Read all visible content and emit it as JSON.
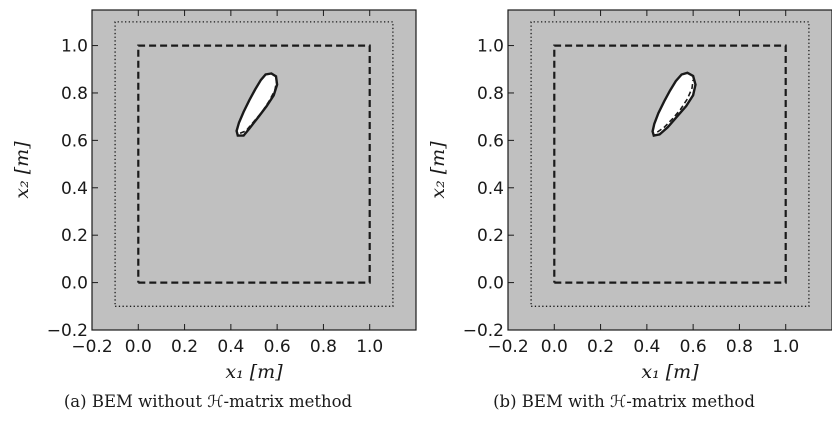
{
  "captions": {
    "a": "(a)  BEM without ℋ-matrix method",
    "b": "(b)  BEM with ℋ-matrix method"
  },
  "colors": {
    "background_fill": "#c0c0c0",
    "ink": "#1a1a1a",
    "inclusion_fill": "#ffffff"
  },
  "chart_data": [
    {
      "type": "line",
      "panel": "a",
      "title": "",
      "xlabel": "x₁  [m]",
      "ylabel": "x₂  [m]",
      "xlim": [
        -0.2,
        1.2
      ],
      "ylim": [
        -0.2,
        1.15
      ],
      "xticks": [
        -0.2,
        0.0,
        0.2,
        0.4,
        0.6,
        0.8,
        1.0
      ],
      "xtick_labels": [
        "−0.2",
        "0.0",
        "0.2",
        "0.4",
        "0.6",
        "0.8",
        "1.0"
      ],
      "yticks": [
        -0.2,
        0.0,
        0.2,
        0.4,
        0.6,
        0.8,
        1.0
      ],
      "ytick_labels": [
        "−0.2",
        "0.0",
        "0.2",
        "0.4",
        "0.6",
        "0.8",
        "1.0"
      ],
      "grid": false,
      "series": [
        {
          "style": "dotted",
          "points": [
            [
              -0.1,
              -0.1
            ],
            [
              1.1,
              -0.1
            ],
            [
              1.1,
              1.1
            ],
            [
              -0.1,
              1.1
            ],
            [
              -0.1,
              -0.1
            ]
          ]
        },
        {
          "style": "dashed",
          "points": [
            [
              0.0,
              0.0
            ],
            [
              1.0,
              0.0
            ],
            [
              1.0,
              1.0
            ],
            [
              0.0,
              1.0
            ],
            [
              0.0,
              0.0
            ]
          ]
        },
        {
          "style": "solid-filled",
          "points": [
            [
              0.43,
              0.62
            ],
            [
              0.455,
              0.62
            ],
            [
              0.48,
              0.65
            ],
            [
              0.52,
              0.7
            ],
            [
              0.555,
              0.745
            ],
            [
              0.585,
              0.79
            ],
            [
              0.6,
              0.835
            ],
            [
              0.595,
              0.87
            ],
            [
              0.575,
              0.882
            ],
            [
              0.55,
              0.878
            ],
            [
              0.53,
              0.855
            ],
            [
              0.505,
              0.815
            ],
            [
              0.48,
              0.77
            ],
            [
              0.455,
              0.72
            ],
            [
              0.435,
              0.675
            ],
            [
              0.425,
              0.64
            ],
            [
              0.43,
              0.62
            ]
          ]
        },
        {
          "style": "dashed",
          "points": [
            [
              0.44,
              0.63
            ],
            [
              0.465,
              0.64
            ],
            [
              0.5,
              0.68
            ],
            [
              0.535,
              0.72
            ],
            [
              0.565,
              0.765
            ],
            [
              0.59,
              0.81
            ],
            [
              0.597,
              0.845
            ]
          ]
        }
      ]
    },
    {
      "type": "line",
      "panel": "b",
      "title": "",
      "xlabel": "x₁  [m]",
      "ylabel": "x₂  [m]",
      "xlim": [
        -0.2,
        1.2
      ],
      "ylim": [
        -0.2,
        1.15
      ],
      "xticks": [
        -0.2,
        0.0,
        0.2,
        0.4,
        0.6,
        0.8,
        1.0
      ],
      "xtick_labels": [
        "−0.2",
        "0.0",
        "0.2",
        "0.4",
        "0.6",
        "0.8",
        "1.0"
      ],
      "yticks": [
        -0.2,
        0.0,
        0.2,
        0.4,
        0.6,
        0.8,
        1.0
      ],
      "ytick_labels": [
        "−0.2",
        "0.0",
        "0.2",
        "0.4",
        "0.6",
        "0.8",
        "1.0"
      ],
      "grid": false,
      "series": [
        {
          "style": "dotted",
          "points": [
            [
              -0.1,
              -0.1
            ],
            [
              1.1,
              -0.1
            ],
            [
              1.1,
              1.1
            ],
            [
              -0.1,
              1.1
            ],
            [
              -0.1,
              -0.1
            ]
          ]
        },
        {
          "style": "dashed",
          "points": [
            [
              0.0,
              0.0
            ],
            [
              1.0,
              0.0
            ],
            [
              1.0,
              1.0
            ],
            [
              0.0,
              1.0
            ],
            [
              0.0,
              0.0
            ]
          ]
        },
        {
          "style": "solid-filled",
          "points": [
            [
              0.43,
              0.62
            ],
            [
              0.455,
              0.625
            ],
            [
              0.49,
              0.655
            ],
            [
              0.53,
              0.7
            ],
            [
              0.57,
              0.745
            ],
            [
              0.6,
              0.79
            ],
            [
              0.61,
              0.835
            ],
            [
              0.6,
              0.872
            ],
            [
              0.575,
              0.885
            ],
            [
              0.55,
              0.878
            ],
            [
              0.525,
              0.85
            ],
            [
              0.5,
              0.81
            ],
            [
              0.475,
              0.765
            ],
            [
              0.45,
              0.715
            ],
            [
              0.432,
              0.67
            ],
            [
              0.425,
              0.638
            ],
            [
              0.43,
              0.62
            ]
          ]
        },
        {
          "style": "dashed",
          "points": [
            [
              0.445,
              0.635
            ],
            [
              0.475,
              0.655
            ],
            [
              0.51,
              0.69
            ],
            [
              0.545,
              0.73
            ],
            [
              0.575,
              0.775
            ],
            [
              0.595,
              0.82
            ],
            [
              0.6,
              0.855
            ]
          ]
        }
      ]
    }
  ]
}
